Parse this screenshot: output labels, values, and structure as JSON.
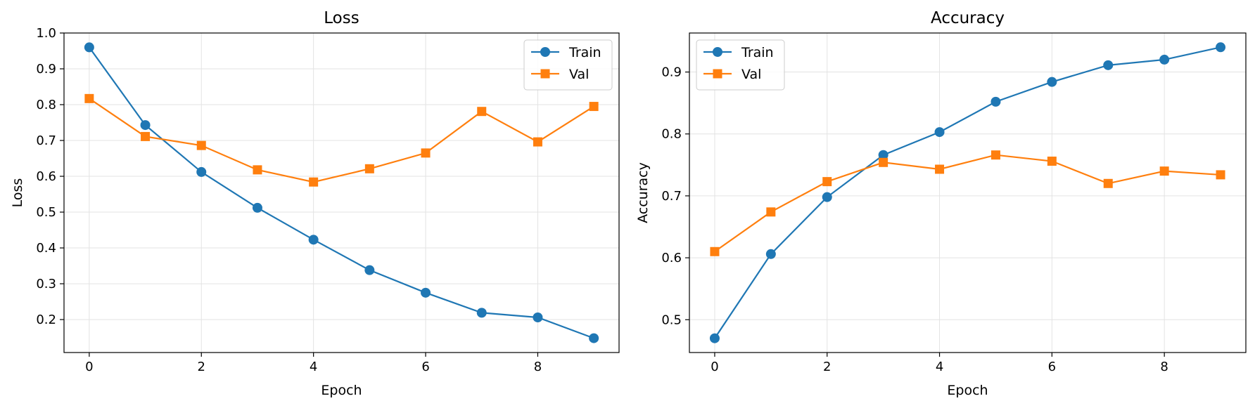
{
  "figure": {
    "colors": {
      "train": "#1f77b4",
      "val": "#ff7f0e",
      "grid": "#e3e3e3",
      "axis": "#000000",
      "background": "#ffffff"
    }
  },
  "chart_data": [
    {
      "type": "line",
      "title": "Loss",
      "xlabel": "Epoch",
      "ylabel": "Loss",
      "xlim": [
        -0.45,
        9.45
      ],
      "ylim": [
        0.108,
        1.0
      ],
      "x": [
        0,
        1,
        2,
        3,
        4,
        5,
        6,
        7,
        8,
        9
      ],
      "xticks": [
        0,
        2,
        4,
        6,
        8
      ],
      "xtick_labels": [
        "0",
        "2",
        "4",
        "6",
        "8"
      ],
      "yticks": [
        0.2,
        0.3,
        0.4,
        0.5,
        0.6,
        0.7,
        0.8,
        0.9,
        1.0
      ],
      "ytick_labels": [
        "0.2",
        "0.3",
        "0.4",
        "0.5",
        "0.6",
        "0.7",
        "0.8",
        "0.9",
        "1.0"
      ],
      "grid": true,
      "legend_position": "upper right",
      "series": [
        {
          "name": "Train",
          "color_key": "train",
          "marker": "circle",
          "values": [
            0.96,
            0.743,
            0.612,
            0.512,
            0.423,
            0.338,
            0.275,
            0.219,
            0.206,
            0.148
          ]
        },
        {
          "name": "Val",
          "color_key": "val",
          "marker": "square",
          "values": [
            0.817,
            0.711,
            0.686,
            0.618,
            0.584,
            0.621,
            0.665,
            0.781,
            0.696,
            0.795
          ]
        }
      ]
    },
    {
      "type": "line",
      "title": "Accuracy",
      "xlabel": "Epoch",
      "ylabel": "Accuracy",
      "xlim": [
        -0.45,
        9.45
      ],
      "ylim": [
        0.447,
        0.963
      ],
      "x": [
        0,
        1,
        2,
        3,
        4,
        5,
        6,
        7,
        8,
        9
      ],
      "xticks": [
        0,
        2,
        4,
        6,
        8
      ],
      "xtick_labels": [
        "0",
        "2",
        "4",
        "6",
        "8"
      ],
      "yticks": [
        0.5,
        0.6,
        0.7,
        0.8,
        0.9
      ],
      "ytick_labels": [
        "0.5",
        "0.6",
        "0.7",
        "0.8",
        "0.9"
      ],
      "grid": true,
      "legend_position": "upper left",
      "series": [
        {
          "name": "Train",
          "color_key": "train",
          "marker": "circle",
          "values": [
            0.47,
            0.606,
            0.698,
            0.766,
            0.803,
            0.852,
            0.884,
            0.911,
            0.92,
            0.94
          ]
        },
        {
          "name": "Val",
          "color_key": "val",
          "marker": "square",
          "values": [
            0.61,
            0.674,
            0.723,
            0.754,
            0.743,
            0.766,
            0.756,
            0.72,
            0.74,
            0.734
          ]
        }
      ]
    }
  ]
}
